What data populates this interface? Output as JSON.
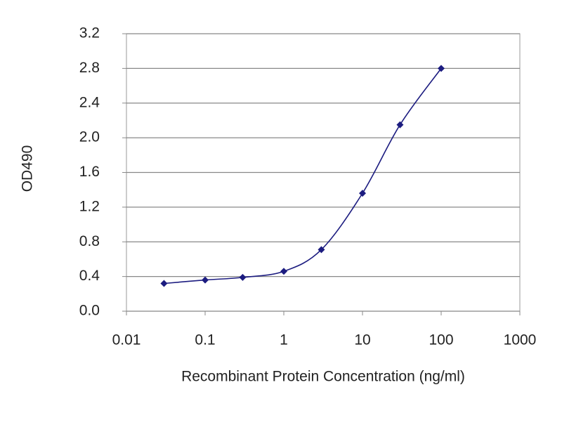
{
  "chart_data": {
    "type": "line",
    "xlabel": "Recombinant Protein Concentration (ng/ml)",
    "ylabel": "OD490",
    "x": [
      0.03,
      0.1,
      0.3,
      1,
      3,
      10,
      30,
      100
    ],
    "values": [
      0.32,
      0.36,
      0.39,
      0.46,
      0.71,
      1.36,
      2.15,
      2.8
    ],
    "color": "#1c1c80",
    "xscale": "log",
    "xlim": [
      0.01,
      1000
    ],
    "xticks": [
      0.01,
      0.1,
      1,
      10,
      100,
      1000
    ],
    "ylim": [
      0,
      3.2
    ],
    "yticks": [
      {
        "value": 0,
        "label": "0.0"
      },
      0.4,
      0.8,
      1.2,
      1.6,
      {
        "value": 2,
        "label": "2.0"
      },
      2.4,
      2.8,
      3.2
    ],
    "grid": true
  }
}
